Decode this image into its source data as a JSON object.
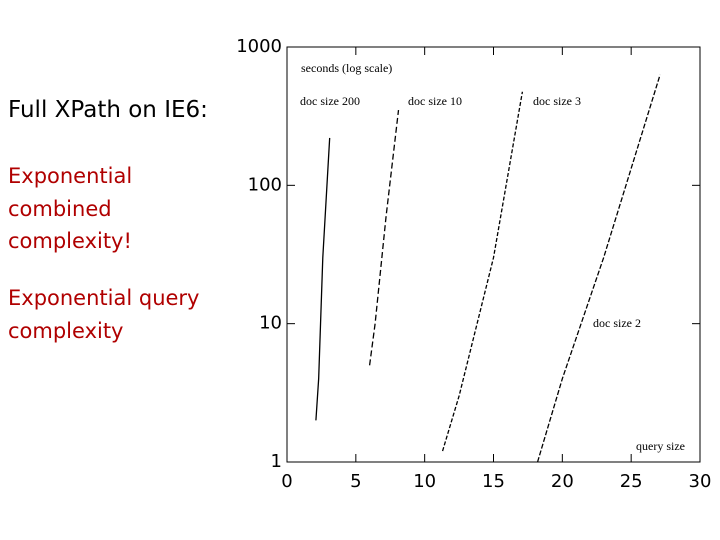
{
  "slide": {
    "heading": "Full XPath on IE6:",
    "bullets": [
      "Exponential combined complexity!",
      "Exponential query complexity"
    ]
  },
  "chart_data": {
    "type": "line",
    "yscale": "log",
    "ylabel": "seconds (log scale)",
    "xlabel": "query size",
    "xlim": [
      0,
      30
    ],
    "xticks": [
      0,
      5,
      10,
      15,
      20,
      25,
      30
    ],
    "ylim": [
      1,
      1000
    ],
    "yticks": [
      1,
      10,
      100,
      1000
    ],
    "series": [
      {
        "name": "doc size 200",
        "color": "#000000",
        "x": [
          2.1,
          2.3,
          2.6,
          3.1
        ],
        "values": [
          2,
          4,
          30,
          220
        ]
      },
      {
        "name": "doc size 10",
        "color": "#000000",
        "x": [
          6.0,
          6.4,
          7.2,
          8.1
        ],
        "values": [
          5,
          10,
          60,
          350
        ]
      },
      {
        "name": "doc size 3",
        "color": "#000000",
        "x": [
          11.3,
          12.5,
          15,
          17.1
        ],
        "values": [
          1.2,
          3,
          30,
          475
        ]
      },
      {
        "name": "doc size 2",
        "color": "#000000",
        "x": [
          18.2,
          20,
          23,
          27.1
        ],
        "values": [
          1,
          4,
          30,
          630
        ]
      }
    ]
  }
}
